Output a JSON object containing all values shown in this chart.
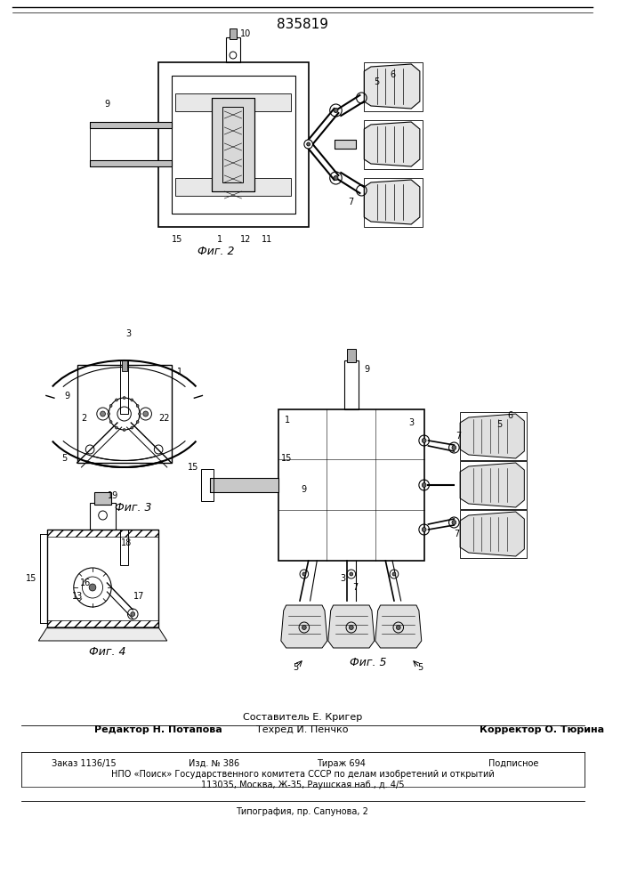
{
  "patent_number": "835819",
  "title_composer": "Составитель Е. Кригер",
  "editor": "Редактор Н. Потапова",
  "techred": "Техред И. Пенчко",
  "corrector": "Корректор О. Тюрина",
  "order": "Заказ 1136/15",
  "izd": "Изд. № 386",
  "tirazh": "Тираж 694",
  "podpisnoe": "Подписное",
  "npo": "НПО «Поиск» Государственного комитета СССР по делам изобретений и открытий",
  "address": "113035, Москва, Ж-35, Раушская наб., д. 4/5",
  "typography": "Типография, пр. Сапунова, 2",
  "fig2_label": "Фиг. 2",
  "fig3_label": "Фиг. 3",
  "fig4_label": "Фиг. 4",
  "fig5_label": "Фиг. 5",
  "bg_color": "#ffffff",
  "line_color": "#000000",
  "font_size_patent": 11,
  "font_size_fig": 9,
  "font_size_label": 7,
  "font_size_small": 8,
  "font_size_tiny": 7
}
